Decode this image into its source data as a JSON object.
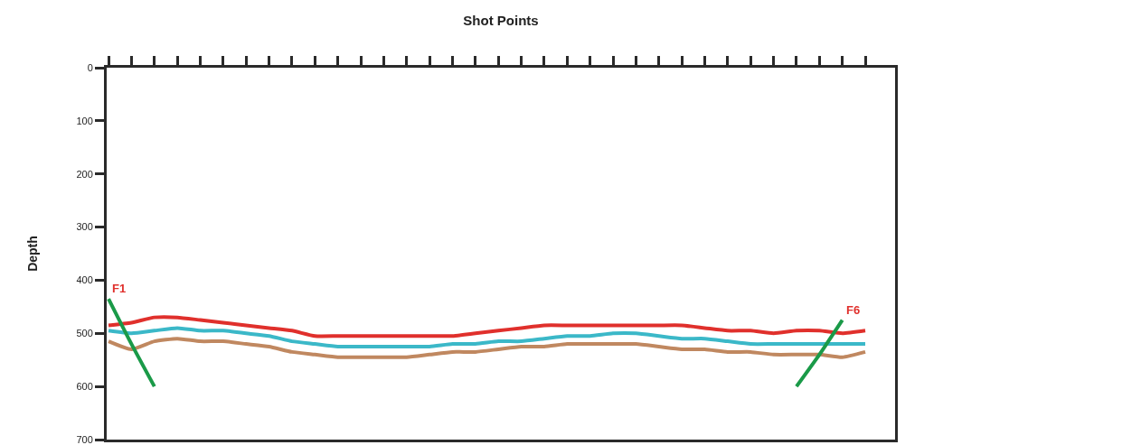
{
  "chart_data": {
    "type": "line",
    "xlabel": "Shot Points",
    "ylabel": "Depth",
    "tick_labels": "y",
    "categories": [
      null,
      null,
      null,
      null,
      null,
      null,
      null,
      null,
      null,
      null,
      null,
      null,
      null,
      null,
      null,
      null,
      null,
      null,
      null,
      null,
      null,
      null,
      null,
      null,
      null,
      null,
      null,
      null,
      null,
      null,
      null,
      null,
      null,
      null
    ],
    "ylim": [
      700,
      0
    ],
    "yticks": [
      0,
      100,
      200,
      300,
      400,
      500,
      600,
      700
    ],
    "series": [
      {
        "color": "#e0302c",
        "values": [
          485,
          480,
          470,
          470,
          475,
          480,
          485,
          490,
          495,
          505,
          505,
          505,
          505,
          505,
          505,
          505,
          500,
          495,
          490,
          485,
          485,
          485,
          485,
          485,
          485,
          485,
          490,
          495,
          495,
          500,
          495,
          495,
          500,
          495
        ]
      },
      {
        "color": "#3bb8c8",
        "values": [
          495,
          500,
          495,
          490,
          495,
          495,
          500,
          505,
          515,
          520,
          525,
          525,
          525,
          525,
          525,
          520,
          520,
          515,
          515,
          510,
          505,
          505,
          500,
          500,
          505,
          510,
          510,
          515,
          520,
          520,
          520,
          520,
          520,
          520
        ]
      },
      {
        "color": "#c08860",
        "values": [
          515,
          530,
          515,
          510,
          515,
          515,
          520,
          525,
          535,
          540,
          545,
          545,
          545,
          545,
          540,
          535,
          535,
          530,
          525,
          525,
          520,
          520,
          520,
          520,
          525,
          530,
          530,
          535,
          535,
          540,
          540,
          540,
          545,
          535
        ]
      },
      {
        "color": "#1a9a48",
        "values": [
          435,
          520,
          600,
          null,
          null,
          null,
          null,
          null,
          null,
          null,
          null,
          null,
          null,
          null,
          null,
          null,
          null,
          null,
          null,
          null,
          null,
          null,
          null,
          null,
          null,
          null,
          null,
          null,
          null,
          null,
          600,
          540,
          475,
          null
        ]
      }
    ],
    "annotations": [
      "F1",
      "F6"
    ]
  }
}
